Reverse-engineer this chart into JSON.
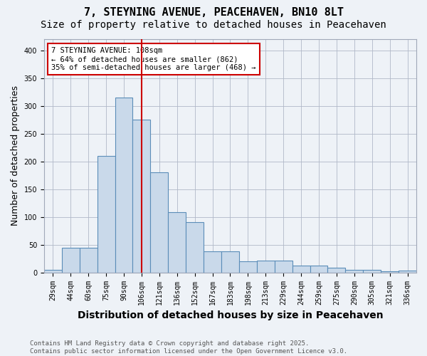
{
  "title_line1": "7, STEYNING AVENUE, PEACEHAVEN, BN10 8LT",
  "title_line2": "Size of property relative to detached houses in Peacehaven",
  "xlabel": "Distribution of detached houses by size in Peacehaven",
  "ylabel": "Number of detached properties",
  "categories": [
    "29sqm",
    "44sqm",
    "60sqm",
    "75sqm",
    "90sqm",
    "106sqm",
    "121sqm",
    "136sqm",
    "152sqm",
    "167sqm",
    "183sqm",
    "198sqm",
    "213sqm",
    "229sqm",
    "244sqm",
    "259sqm",
    "275sqm",
    "290sqm",
    "305sqm",
    "321sqm",
    "336sqm"
  ],
  "values": [
    5,
    44,
    44,
    210,
    315,
    275,
    180,
    108,
    90,
    38,
    38,
    20,
    21,
    21,
    13,
    12,
    9,
    5,
    5,
    2,
    3
  ],
  "bar_color": "#c9d9ea",
  "bar_edge_color": "#5b8db8",
  "vline_x": 5,
  "vline_color": "#cc0000",
  "annotation_text": "7 STEYNING AVENUE: 108sqm\n← 64% of detached houses are smaller (862)\n35% of semi-detached houses are larger (468) →",
  "box_color": "#cc0000",
  "footer_line1": "Contains HM Land Registry data © Crown copyright and database right 2025.",
  "footer_line2": "Contains public sector information licensed under the Open Government Licence v3.0.",
  "ylim": [
    0,
    420
  ],
  "background_color": "#eef2f7",
  "plot_background_color": "#eef2f7",
  "title_fontsize": 11,
  "subtitle_fontsize": 10,
  "tick_fontsize": 7,
  "ylabel_fontsize": 9,
  "xlabel_fontsize": 10
}
